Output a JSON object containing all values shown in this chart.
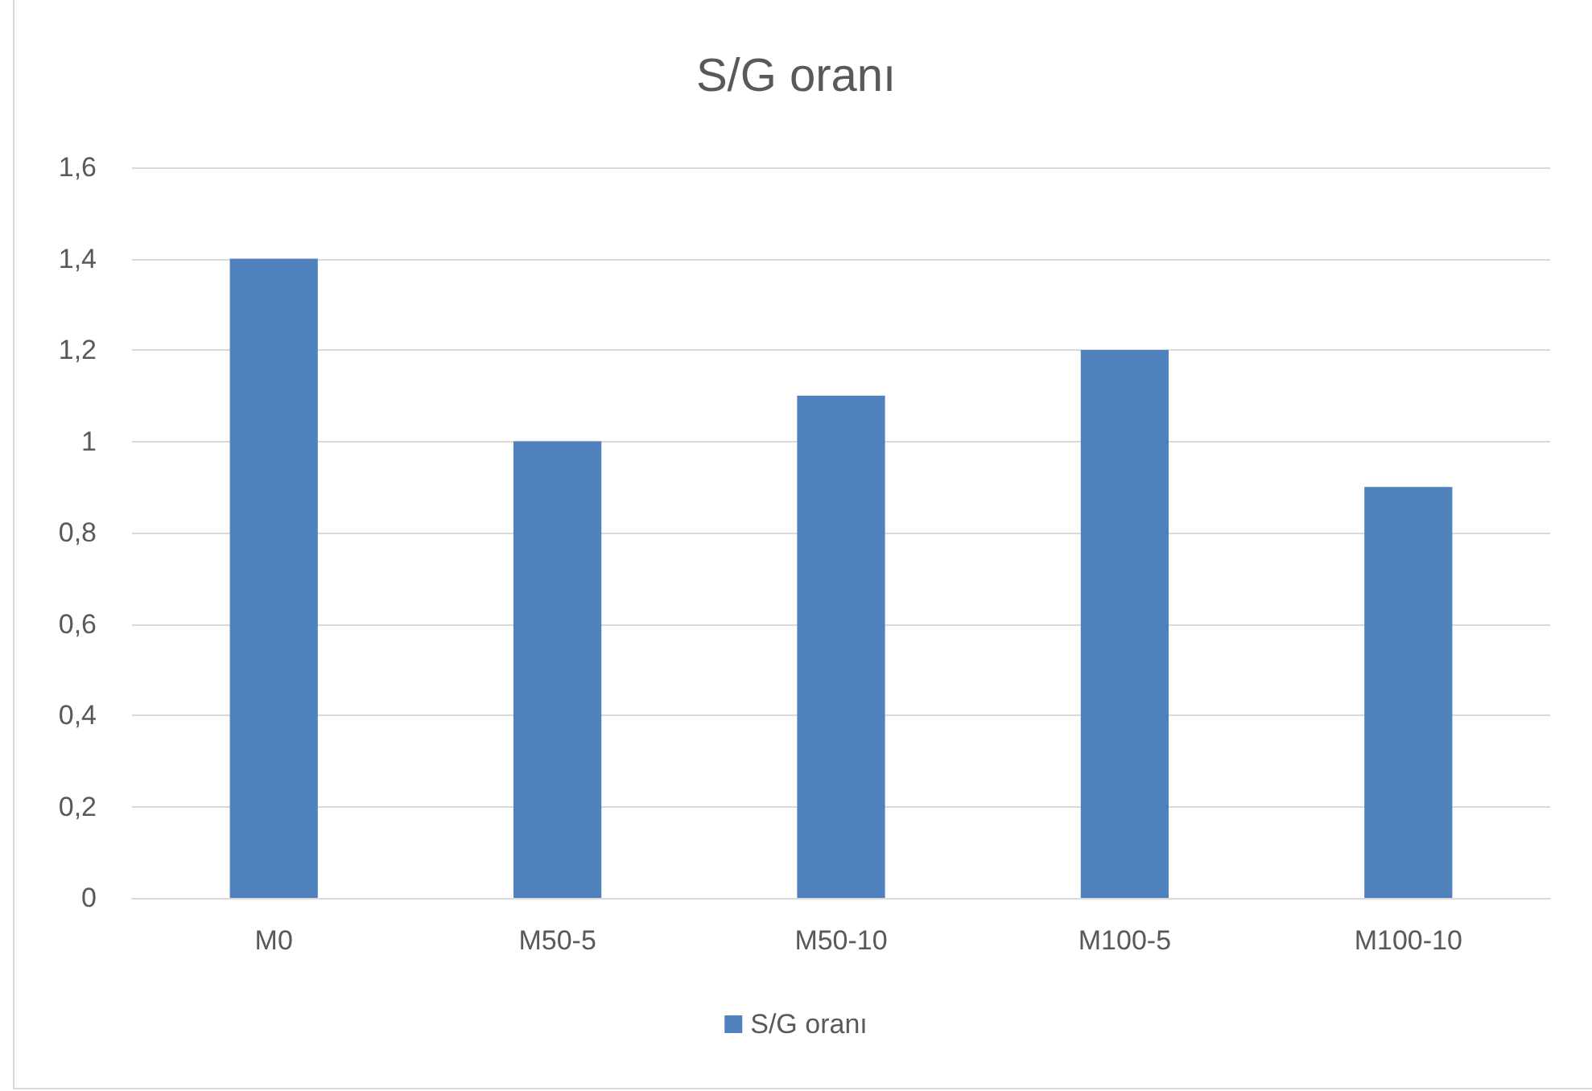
{
  "chart_data": {
    "type": "bar",
    "title": "S/G oranı",
    "categories": [
      "M0",
      "M50-5",
      "M50-10",
      "M100-5",
      "M100-10"
    ],
    "series": [
      {
        "name": "S/G oranı",
        "color": "#4f81bd",
        "values": [
          1.4,
          1.0,
          1.1,
          1.2,
          0.9
        ]
      }
    ],
    "ylim": [
      0,
      1.6
    ],
    "yticks": [
      0,
      {
        "value": 0.2,
        "label": "0,2"
      },
      {
        "value": 0.4,
        "label": "0,4"
      },
      {
        "value": 0.6,
        "label": "0,6"
      },
      {
        "value": 0.8,
        "label": "0,8"
      },
      1,
      {
        "value": 1.2,
        "label": "1,2"
      },
      {
        "value": 1.4,
        "label": "1,4"
      },
      {
        "value": 1.6,
        "label": "1,6"
      }
    ],
    "grid": "y",
    "legend": "bottom"
  }
}
